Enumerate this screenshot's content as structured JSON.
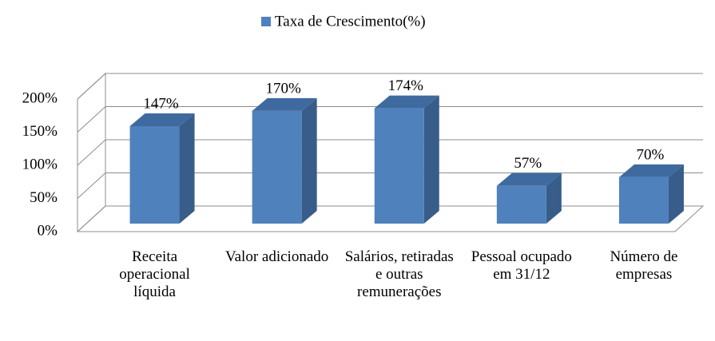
{
  "chart_data": {
    "type": "bar3d",
    "categories": [
      "Receita operacional líquida",
      "Valor adicionado",
      "Salários, retiradas e outras remunerações",
      "Pessoal ocupado em 31/12",
      "Número de empresas"
    ],
    "series": [
      {
        "name": "Taxa de Crescimento(%)",
        "color": "#4f81bd",
        "values": [
          147,
          170,
          174,
          57,
          70
        ],
        "value_labels": [
          "147%",
          "170%",
          "174%",
          "57%",
          "70%"
        ]
      }
    ],
    "ylim": [
      0,
      200
    ],
    "yticks": [
      {
        "value": 0,
        "label": "0%"
      },
      {
        "value": 50,
        "label": "50%"
      },
      {
        "value": 100,
        "label": "100%"
      },
      {
        "value": 150,
        "label": "150%"
      },
      {
        "value": 200,
        "label": "200%"
      }
    ],
    "grid": true,
    "legend": "top"
  }
}
